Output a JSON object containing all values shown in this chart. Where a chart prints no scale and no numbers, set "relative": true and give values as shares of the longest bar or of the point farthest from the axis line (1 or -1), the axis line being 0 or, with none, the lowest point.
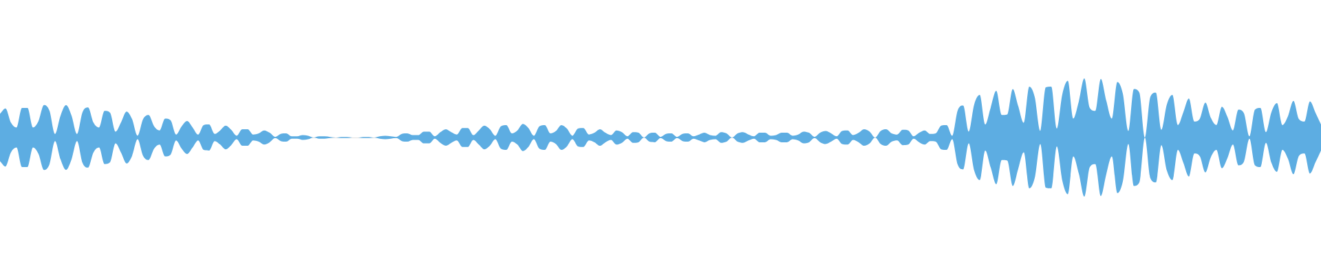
{
  "chart_data": {
    "type": "area",
    "relative": true,
    "categories": [
      null,
      null,
      null,
      null,
      null,
      null,
      null,
      null,
      null,
      null,
      null,
      null,
      null,
      null,
      null,
      null,
      null,
      null,
      null,
      null,
      null,
      null,
      null,
      null,
      null,
      null,
      null,
      null,
      null,
      null,
      null,
      null,
      null,
      null,
      null,
      null,
      null,
      null,
      null,
      null,
      null,
      null,
      null,
      null,
      null,
      null,
      null,
      null,
      null,
      null,
      null,
      null,
      null,
      null,
      null,
      null,
      null,
      null,
      null,
      null,
      null,
      null,
      null,
      null,
      null,
      null,
      null,
      null,
      null,
      null,
      null,
      null,
      null,
      null,
      null,
      null,
      null,
      null,
      null,
      null,
      null,
      null,
      null,
      null,
      null,
      null,
      null,
      null,
      null,
      null,
      null,
      null,
      null,
      null,
      null,
      null,
      null,
      null,
      null,
      null,
      null,
      null,
      null,
      null,
      null,
      null,
      null,
      null,
      null,
      null,
      null,
      null,
      null,
      null,
      null,
      null,
      null,
      null,
      null,
      null,
      null,
      null,
      null,
      null,
      null,
      null,
      null,
      null,
      null,
      null,
      null,
      null,
      null,
      null,
      null,
      null,
      null,
      null,
      null,
      null,
      null,
      null,
      null,
      null,
      null,
      null,
      null,
      null,
      null,
      null,
      null,
      null,
      null,
      null,
      null,
      null,
      null,
      null,
      null,
      null,
      null,
      null,
      null,
      null,
      null,
      null,
      null,
      null,
      null,
      null,
      null,
      null,
      null,
      null,
      null,
      null,
      null,
      null,
      null,
      null,
      null,
      null,
      null,
      null,
      null,
      null,
      null,
      null,
      null,
      null,
      null,
      null,
      null,
      null,
      null,
      null,
      null,
      null,
      null,
      null,
      null,
      null,
      null,
      null,
      null,
      null,
      null,
      null,
      null,
      null,
      null,
      null,
      null,
      null,
      null,
      null,
      null,
      null,
      null,
      null,
      null,
      null,
      null,
      null,
      null,
      null,
      null,
      null,
      null,
      null,
      null,
      null,
      null,
      null,
      null,
      null,
      null,
      null,
      null,
      null,
      null
    ],
    "series": [
      {
        "color": "#5dade2",
        "values": [
          0.4,
          0.49,
          0.25,
          0.17,
          0.5,
          0.5,
          0.17,
          0.28,
          0.55,
          0.45,
          0.06,
          0.37,
          0.55,
          0.37,
          0.06,
          0.43,
          0.51,
          0.25,
          0.17,
          0.45,
          0.42,
          0.1,
          0.26,
          0.44,
          0.31,
          0.03,
          0.31,
          0.38,
          0.19,
          0.12,
          0.32,
          0.29,
          0.05,
          0.19,
          0.28,
          0.17,
          0.05,
          0.21,
          0.22,
          0.06,
          0.12,
          0.2,
          0.13,
          0.03,
          0.14,
          0.14,
          0.05,
          0.07,
          0.12,
          0.08,
          0.01,
          0.06,
          0.07,
          0.02,
          0.02,
          0.04,
          0.03,
          0,
          0.02,
          0.02,
          0.01,
          0,
          0.01,
          0.01,
          0,
          0,
          0.01,
          0.01,
          0,
          0.02,
          0.03,
          0.02,
          0.01,
          0.06,
          0.07,
          0.04,
          0.04,
          0.1,
          0.1,
          0.02,
          0.09,
          0.14,
          0.09,
          0.05,
          0.16,
          0.16,
          0.04,
          0.12,
          0.2,
          0.14,
          0.03,
          0.19,
          0.21,
          0.07,
          0.12,
          0.23,
          0.16,
          0.03,
          0.19,
          0.21,
          0.07,
          0.11,
          0.21,
          0.15,
          0.03,
          0.15,
          0.16,
          0.05,
          0.08,
          0.14,
          0.08,
          0.04,
          0.12,
          0.09,
          0.02,
          0.09,
          0.08,
          0,
          0.07,
          0.08,
          0.01,
          0.06,
          0.07,
          0.01,
          0.06,
          0.07,
          0.02,
          0.05,
          0.08,
          0.04,
          0.03,
          0.09,
          0.07,
          0,
          0.07,
          0.09,
          0.05,
          0.02,
          0.08,
          0.08,
          0.03,
          0.04,
          0.08,
          0.08,
          0.03,
          0.05,
          0.1,
          0.08,
          0.01,
          0.08,
          0.11,
          0.07,
          0.02,
          0.11,
          0.12,
          0.04,
          0.08,
          0.14,
          0.1,
          0,
          0.11,
          0.14,
          0.07,
          0.05,
          0.13,
          0.12,
          0.02,
          0.08,
          0.12,
          0.06,
          0.07,
          0.2,
          0.21,
          0.03,
          0.46,
          0.54,
          0.1,
          0.56,
          0.72,
          0.22,
          0.51,
          0.79,
          0.38,
          0.39,
          0.82,
          0.53,
          0.25,
          0.86,
          0.68,
          0.11,
          0.85,
          0.86,
          0.15,
          0.73,
          0.96,
          0.32,
          0.61,
          1,
          0.5,
          0.45,
          0.99,
          0.62,
          0.32,
          0.94,
          0.74,
          0.11,
          0.82,
          0.76,
          0,
          0.69,
          0.76,
          0.13,
          0.56,
          0.72,
          0.21,
          0.43,
          0.66,
          0.27,
          0.32,
          0.59,
          0.33,
          0.21,
          0.52,
          0.35,
          0.12,
          0.47,
          0.41,
          0.02,
          0.47,
          0.5,
          0.09,
          0.43,
          0.58,
          0.21,
          0.36,
          0.62,
          0.31,
          0.27,
          0.61,
          0.42,
          0.22
        ]
      },
      {
        "color": "#5dade2",
        "values": [
          -0.4,
          -0.49,
          -0.25,
          -0.17,
          -0.5,
          -0.5,
          -0.17,
          -0.28,
          -0.55,
          -0.45,
          -0.06,
          -0.37,
          -0.55,
          -0.37,
          -0.06,
          -0.43,
          -0.51,
          -0.25,
          -0.17,
          -0.45,
          -0.42,
          -0.1,
          -0.26,
          -0.44,
          -0.31,
          -0.03,
          -0.31,
          -0.38,
          -0.19,
          -0.12,
          -0.32,
          -0.29,
          -0.05,
          -0.19,
          -0.28,
          -0.17,
          -0.05,
          -0.21,
          -0.22,
          -0.06,
          -0.12,
          -0.2,
          -0.13,
          -0.03,
          -0.14,
          -0.14,
          -0.05,
          -0.07,
          -0.12,
          -0.08,
          -0.01,
          -0.06,
          -0.07,
          -0.02,
          -0.02,
          -0.04,
          -0.03,
          0,
          -0.02,
          -0.02,
          -0.01,
          0,
          -0.01,
          -0.01,
          0,
          0,
          -0.01,
          -0.01,
          0,
          -0.02,
          -0.03,
          -0.02,
          -0.01,
          -0.06,
          -0.07,
          -0.04,
          -0.04,
          -0.1,
          -0.1,
          -0.02,
          -0.09,
          -0.14,
          -0.09,
          -0.05,
          -0.16,
          -0.16,
          -0.04,
          -0.12,
          -0.2,
          -0.14,
          -0.03,
          -0.19,
          -0.21,
          -0.07,
          -0.12,
          -0.23,
          -0.16,
          -0.03,
          -0.19,
          -0.21,
          -0.07,
          -0.11,
          -0.21,
          -0.15,
          -0.03,
          -0.15,
          -0.16,
          -0.05,
          -0.08,
          -0.14,
          -0.08,
          -0.04,
          -0.12,
          -0.09,
          -0.02,
          -0.09,
          -0.08,
          0,
          -0.07,
          -0.08,
          -0.01,
          -0.06,
          -0.07,
          -0.01,
          -0.06,
          -0.07,
          -0.02,
          -0.05,
          -0.08,
          -0.04,
          -0.03,
          -0.09,
          -0.07,
          0,
          -0.07,
          -0.09,
          -0.05,
          -0.02,
          -0.08,
          -0.08,
          -0.03,
          -0.04,
          -0.08,
          -0.08,
          -0.03,
          -0.05,
          -0.1,
          -0.08,
          -0.01,
          -0.08,
          -0.11,
          -0.07,
          -0.02,
          -0.11,
          -0.12,
          -0.04,
          -0.08,
          -0.14,
          -0.1,
          0,
          -0.11,
          -0.14,
          -0.07,
          -0.05,
          -0.13,
          -0.12,
          -0.02,
          -0.08,
          -0.12,
          -0.06,
          -0.07,
          -0.2,
          -0.21,
          -0.03,
          -0.46,
          -0.54,
          -0.1,
          -0.56,
          -0.72,
          -0.22,
          -0.51,
          -0.79,
          -0.38,
          -0.39,
          -0.82,
          -0.53,
          -0.25,
          -0.86,
          -0.68,
          -0.11,
          -0.85,
          -0.86,
          -0.15,
          -0.73,
          -0.96,
          -0.32,
          -0.61,
          -1,
          -0.5,
          -0.45,
          -0.99,
          -0.62,
          -0.32,
          -0.94,
          -0.74,
          -0.11,
          -0.82,
          -0.76,
          0,
          -0.69,
          -0.76,
          -0.13,
          -0.56,
          -0.72,
          -0.21,
          -0.43,
          -0.66,
          -0.27,
          -0.32,
          -0.59,
          -0.33,
          -0.21,
          -0.52,
          -0.35,
          -0.12,
          -0.47,
          -0.41,
          -0.02,
          -0.47,
          -0.5,
          -0.09,
          -0.43,
          -0.58,
          -0.21,
          -0.36,
          -0.62,
          -0.31,
          -0.27,
          -0.61,
          -0.42,
          -0.22
        ]
      }
    ]
  }
}
